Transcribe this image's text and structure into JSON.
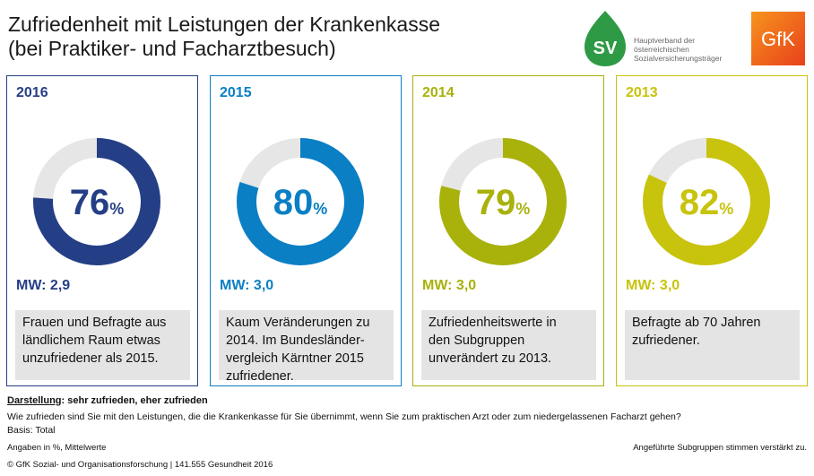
{
  "title": {
    "line1": "Zufriedenheit mit Leistungen der Krankenkasse",
    "line2": "(bei Praktiker- und Facharztbesuch)"
  },
  "logos": {
    "sv_text": [
      "Hauptverband der",
      "österreichischen",
      "Sozialversicherungsträger"
    ],
    "sv_letters": "SV",
    "gfk": "GfK"
  },
  "colors": {
    "ring_bg": "#e6e6e6",
    "gfk_orange": "#f26722",
    "sv_green": "#2e9a45"
  },
  "chart_data": {
    "type": "donut",
    "unit": "%",
    "categories": [
      "2016",
      "2015",
      "2014",
      "2013"
    ],
    "values": [
      76,
      80,
      79,
      82
    ],
    "mw_values": [
      "2,9",
      "3,0",
      "3,0",
      "3,0"
    ],
    "cards": [
      {
        "year": "2016",
        "value": 76,
        "value_label": "76",
        "pct": "%",
        "mw": "MW: 2,9",
        "color": "#253f86",
        "note": [
          "Frauen und Befragte aus",
          "ländlichem Raum etwas",
          "unzufriedener als 2015."
        ]
      },
      {
        "year": "2015",
        "value": 80,
        "value_label": "80",
        "pct": "%",
        "mw": "MW: 3,0",
        "color": "#0a7fc4",
        "note": [
          "Kaum Veränderungen zu",
          "2014. Im Bundesländer-",
          "vergleich Kärntner 2015",
          "zufriedener."
        ]
      },
      {
        "year": "2014",
        "value": 79,
        "value_label": "79",
        "pct": "%",
        "mw": "MW: 3,0",
        "color": "#a9b10b",
        "note": [
          "Zufriedenheitswerte in",
          "den Subgruppen",
          "unverändert zu 2013."
        ]
      },
      {
        "year": "2013",
        "value": 82,
        "value_label": "82",
        "pct": "%",
        "mw": "MW: 3,0",
        "color": "#c8c30d",
        "note": [
          "Befragte ab 70 Jahren",
          "zufriedener."
        ]
      }
    ]
  },
  "footer": {
    "darstellung_label": "Darstellung",
    "darstellung_text": ": sehr zufrieden, eher zufrieden",
    "question": "Wie zufrieden sind Sie mit den Leistungen, die die Krankenkasse für Sie übernimmt, wenn Sie zum praktischen Arzt oder zum niedergelassenen Facharzt gehen?",
    "basis": "Basis: Total",
    "angaben": "Angaben in %, Mittelwerte",
    "subgroups": "Angeführte Subgruppen stimmen verstärkt zu.",
    "source": "© GfK Sozial- und Organisationsforschung  | 141.555 Gesundheit 2016"
  }
}
